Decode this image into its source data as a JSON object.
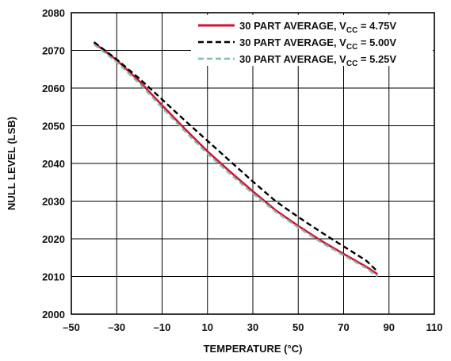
{
  "chart_data": {
    "type": "line",
    "xlabel": "TEMPERATURE (°C)",
    "ylabel": "NULL LEVEL (LSB)",
    "xlim": [
      -50,
      110
    ],
    "ylim": [
      2000,
      2080
    ],
    "x_ticks": [
      -50,
      -30,
      -10,
      10,
      30,
      50,
      70,
      90,
      110
    ],
    "y_ticks": [
      2000,
      2010,
      2020,
      2030,
      2040,
      2050,
      2060,
      2070,
      2080
    ],
    "x_tick_labels": [
      "–50",
      "–30",
      "–10",
      "10",
      "30",
      "50",
      "70",
      "90",
      "110"
    ],
    "y_tick_labels": [
      "2000",
      "2010",
      "2020",
      "2030",
      "2040",
      "2050",
      "2060",
      "2070",
      "2080"
    ],
    "grid": true,
    "legend_position": "top-right",
    "x": [
      -40,
      -30,
      -20,
      -10,
      0,
      10,
      20,
      30,
      40,
      50,
      60,
      70,
      80,
      85
    ],
    "series": [
      {
        "name": "30 PART AVERAGE, VCC = 4.75V",
        "name_prefix": "30 PART AVERAGE, V",
        "name_sub": "CC",
        "name_suffix": " = 4.75V",
        "color": "#d0103a",
        "dash": "solid",
        "values": [
          2072,
          2067.4,
          2061.8,
          2055.4,
          2049.2,
          2043.2,
          2037.8,
          2032.6,
          2027.6,
          2023.4,
          2019.5,
          2016.0,
          2012.6,
          2010.6
        ]
      },
      {
        "name": "30 PART AVERAGE, VCC = 5.00V",
        "name_prefix": "30 PART AVERAGE, V",
        "name_sub": "CC",
        "name_suffix": " = 5.00V",
        "color": "#000000",
        "dash": "dashed",
        "values": [
          2072.2,
          2067.6,
          2062.5,
          2057.0,
          2051.4,
          2046.0,
          2040.6,
          2035.2,
          2030.0,
          2025.8,
          2021.8,
          2018.0,
          2014.2,
          2011.3
        ]
      },
      {
        "name": "30 PART AVERAGE, VCC = 5.25V",
        "name_prefix": "30 PART AVERAGE, V",
        "name_sub": "CC",
        "name_suffix": " = 5.25V",
        "color": "#7fbf9f",
        "dash": "dashed",
        "values": [
          2071.6,
          2066.9,
          2061.2,
          2054.8,
          2048.6,
          2042.6,
          2037.2,
          2032.0,
          2027.2,
          2023.0,
          2019.1,
          2015.6,
          2012.2,
          2010.0
        ]
      }
    ]
  }
}
